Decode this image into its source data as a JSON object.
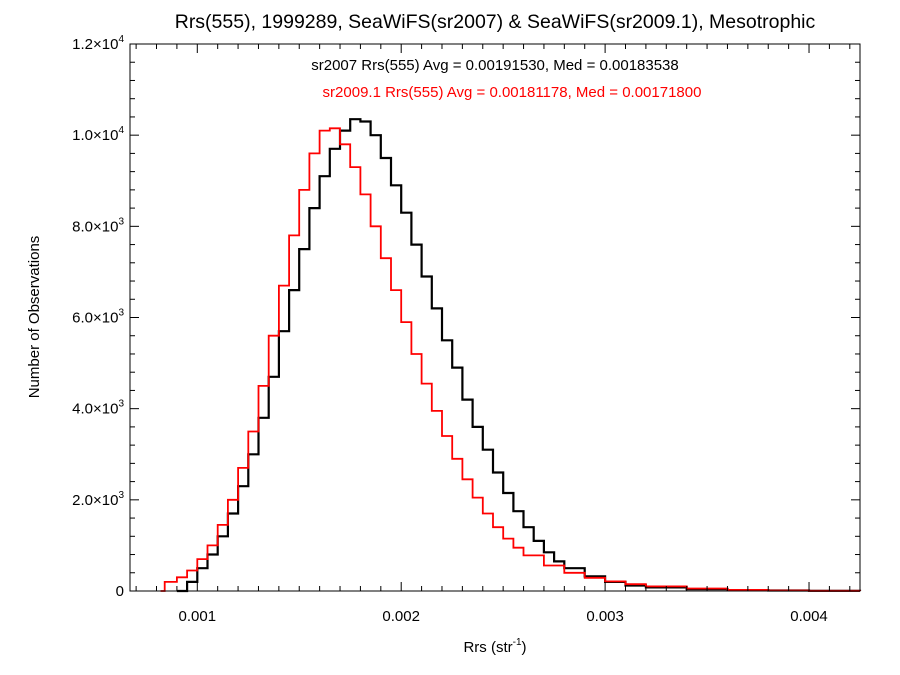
{
  "chart_data": {
    "type": "line",
    "title": "Rrs(555), 1999289, SeaWiFS(sr2007) & SeaWiFS(sr2009.1), Mesotrophic",
    "xlabel": "Rrs (str",
    "xlabel_sup": "-1",
    "xlabel_end": ")",
    "ylabel": "Number of Observations",
    "xlim": [
      0.00067,
      0.00425
    ],
    "ylim": [
      0,
      12000
    ],
    "x_ticks": [
      {
        "value": 0.001,
        "label": "0.001"
      },
      {
        "value": 0.002,
        "label": "0.002"
      },
      {
        "value": 0.003,
        "label": "0.003"
      },
      {
        "value": 0.004,
        "label": "0.004"
      }
    ],
    "y_ticks": [
      {
        "value": 0,
        "base": "0",
        "exp": ""
      },
      {
        "value": 2000,
        "base": "2.0×10",
        "exp": "3"
      },
      {
        "value": 4000,
        "base": "4.0×10",
        "exp": "3"
      },
      {
        "value": 6000,
        "base": "6.0×10",
        "exp": "3"
      },
      {
        "value": 8000,
        "base": "8.0×10",
        "exp": "3"
      },
      {
        "value": 10000,
        "base": "1.0×10",
        "exp": "4"
      },
      {
        "value": 12000,
        "base": "1.2×10",
        "exp": "4"
      }
    ],
    "annotations": [
      {
        "text": "sr2007 Rrs(555) Avg = 0.00191530, Med = 0.00183538",
        "color": "#000000"
      },
      {
        "text": "sr2009.1 Rrs(555) Avg = 0.00181178, Med = 0.00171800",
        "color": "#ff0000"
      }
    ],
    "series": [
      {
        "color": "#000000",
        "points": [
          [
            0.0009,
            0
          ],
          [
            0.00095,
            200
          ],
          [
            0.001,
            500
          ],
          [
            0.00105,
            800
          ],
          [
            0.0011,
            1200
          ],
          [
            0.00115,
            1700
          ],
          [
            0.0012,
            2300
          ],
          [
            0.00125,
            3000
          ],
          [
            0.0013,
            3800
          ],
          [
            0.00135,
            4700
          ],
          [
            0.0014,
            5700
          ],
          [
            0.00145,
            6600
          ],
          [
            0.0015,
            7500
          ],
          [
            0.00155,
            8400
          ],
          [
            0.0016,
            9100
          ],
          [
            0.00165,
            9700
          ],
          [
            0.0017,
            10100
          ],
          [
            0.00175,
            10350
          ],
          [
            0.0018,
            10300
          ],
          [
            0.00185,
            10000
          ],
          [
            0.0019,
            9500
          ],
          [
            0.00195,
            8900
          ],
          [
            0.002,
            8300
          ],
          [
            0.00205,
            7600
          ],
          [
            0.0021,
            6900
          ],
          [
            0.00215,
            6200
          ],
          [
            0.0022,
            5500
          ],
          [
            0.00225,
            4900
          ],
          [
            0.0023,
            4200
          ],
          [
            0.00235,
            3600
          ],
          [
            0.0024,
            3100
          ],
          [
            0.00245,
            2600
          ],
          [
            0.0025,
            2150
          ],
          [
            0.00255,
            1750
          ],
          [
            0.0026,
            1400
          ],
          [
            0.00265,
            1100
          ],
          [
            0.0027,
            850
          ],
          [
            0.00275,
            650
          ],
          [
            0.0028,
            500
          ],
          [
            0.0029,
            320
          ],
          [
            0.003,
            200
          ],
          [
            0.0031,
            120
          ],
          [
            0.0032,
            80
          ],
          [
            0.0034,
            40
          ],
          [
            0.0036,
            20
          ],
          [
            0.0038,
            10
          ],
          [
            0.004,
            5
          ],
          [
            0.00425,
            0
          ]
        ]
      },
      {
        "color": "#ff0000",
        "points": [
          [
            0.00082,
            0
          ],
          [
            0.00084,
            200
          ],
          [
            0.0009,
            300
          ],
          [
            0.00095,
            450
          ],
          [
            0.001,
            700
          ],
          [
            0.00105,
            1000
          ],
          [
            0.0011,
            1450
          ],
          [
            0.00115,
            2000
          ],
          [
            0.0012,
            2700
          ],
          [
            0.00125,
            3500
          ],
          [
            0.0013,
            4500
          ],
          [
            0.00135,
            5600
          ],
          [
            0.0014,
            6700
          ],
          [
            0.00145,
            7800
          ],
          [
            0.0015,
            8800
          ],
          [
            0.00155,
            9600
          ],
          [
            0.0016,
            10100
          ],
          [
            0.00165,
            10150
          ],
          [
            0.0017,
            9800
          ],
          [
            0.00175,
            9300
          ],
          [
            0.0018,
            8700
          ],
          [
            0.00185,
            8000
          ],
          [
            0.0019,
            7300
          ],
          [
            0.00195,
            6600
          ],
          [
            0.002,
            5900
          ],
          [
            0.00205,
            5200
          ],
          [
            0.0021,
            4550
          ],
          [
            0.00215,
            3950
          ],
          [
            0.0022,
            3400
          ],
          [
            0.00225,
            2900
          ],
          [
            0.0023,
            2450
          ],
          [
            0.00235,
            2050
          ],
          [
            0.0024,
            1700
          ],
          [
            0.00245,
            1400
          ],
          [
            0.0025,
            1150
          ],
          [
            0.00255,
            950
          ],
          [
            0.0026,
            780
          ],
          [
            0.0027,
            560
          ],
          [
            0.0028,
            400
          ],
          [
            0.0029,
            290
          ],
          [
            0.003,
            210
          ],
          [
            0.0031,
            150
          ],
          [
            0.0032,
            100
          ],
          [
            0.0034,
            55
          ],
          [
            0.0036,
            25
          ],
          [
            0.0038,
            12
          ],
          [
            0.004,
            5
          ],
          [
            0.00425,
            2
          ]
        ]
      }
    ]
  }
}
